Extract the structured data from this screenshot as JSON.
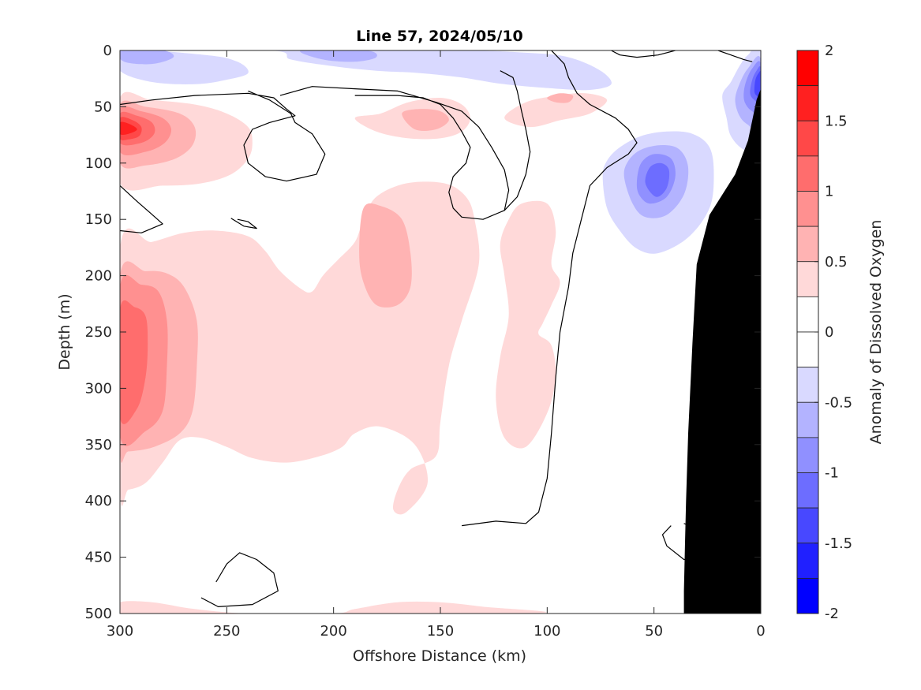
{
  "chart_data": {
    "type": "heatmap",
    "title": "Line 57, 2024/05/10",
    "xlabel": "Offshore Distance (km)",
    "ylabel": "Depth (m)",
    "xlim": [
      300,
      0
    ],
    "ylim": [
      0,
      500
    ],
    "x_reversed": true,
    "y_reversed": true,
    "x_ticks": [
      300,
      250,
      200,
      150,
      100,
      50,
      0
    ],
    "y_ticks": [
      0,
      50,
      100,
      150,
      200,
      250,
      300,
      350,
      400,
      450,
      500
    ],
    "colorbar": {
      "label": "Anomaly of Dissolved Oxygen",
      "lim": [
        -2,
        2
      ],
      "ticks": [
        2,
        1.5,
        1,
        0.5,
        0,
        -0.5,
        -1,
        -1.5,
        -2
      ],
      "tick_labels": [
        "2",
        "1.5",
        "1",
        "0.5",
        "0",
        "-0.5",
        "-1",
        "-1.5",
        "-2"
      ],
      "levels": [
        {
          "from": 1.75,
          "to": 2.0,
          "color": "#ff0000"
        },
        {
          "from": 1.5,
          "to": 1.75,
          "color": "#ff2020"
        },
        {
          "from": 1.25,
          "to": 1.5,
          "color": "#ff4848"
        },
        {
          "from": 1.0,
          "to": 1.25,
          "color": "#ff6d6d"
        },
        {
          "from": 0.75,
          "to": 1.0,
          "color": "#ff9090"
        },
        {
          "from": 0.5,
          "to": 0.75,
          "color": "#ffb3b3"
        },
        {
          "from": 0.25,
          "to": 0.5,
          "color": "#ffd9d9"
        },
        {
          "from": 0.0,
          "to": 0.25,
          "color": "#ffffff"
        },
        {
          "from": -0.25,
          "to": 0.0,
          "color": "#ffffff"
        },
        {
          "from": -0.5,
          "to": -0.25,
          "color": "#d9d9ff"
        },
        {
          "from": -0.75,
          "to": -0.5,
          "color": "#b3b3ff"
        },
        {
          "from": -1.0,
          "to": -0.75,
          "color": "#9090ff"
        },
        {
          "from": -1.25,
          "to": -1.0,
          "color": "#6d6dff"
        },
        {
          "from": -1.5,
          "to": -1.25,
          "color": "#4848ff"
        },
        {
          "from": -1.75,
          "to": -1.5,
          "color": "#2020ff"
        },
        {
          "from": -2.0,
          "to": -1.75,
          "color": "#0000ff"
        }
      ]
    },
    "zero_contour": true,
    "bathymetry_fill": "#000000",
    "features": [
      {
        "kind": "positive",
        "level": 1.5,
        "center_km": 292,
        "center_depth_m": 70
      },
      {
        "kind": "positive",
        "level": 1.0,
        "center_km": 293,
        "center_depth_m": 310
      },
      {
        "kind": "positive",
        "level": 0.5,
        "center_km": 175,
        "center_depth_m": 200
      },
      {
        "kind": "negative",
        "level": -1.25,
        "center_km": 52,
        "center_depth_m": 115
      },
      {
        "kind": "negative",
        "level": -1.75,
        "center_km": 3,
        "center_depth_m": 25
      },
      {
        "kind": "negative",
        "level": -0.25,
        "center_km": 220,
        "center_depth_m": 90
      }
    ]
  }
}
